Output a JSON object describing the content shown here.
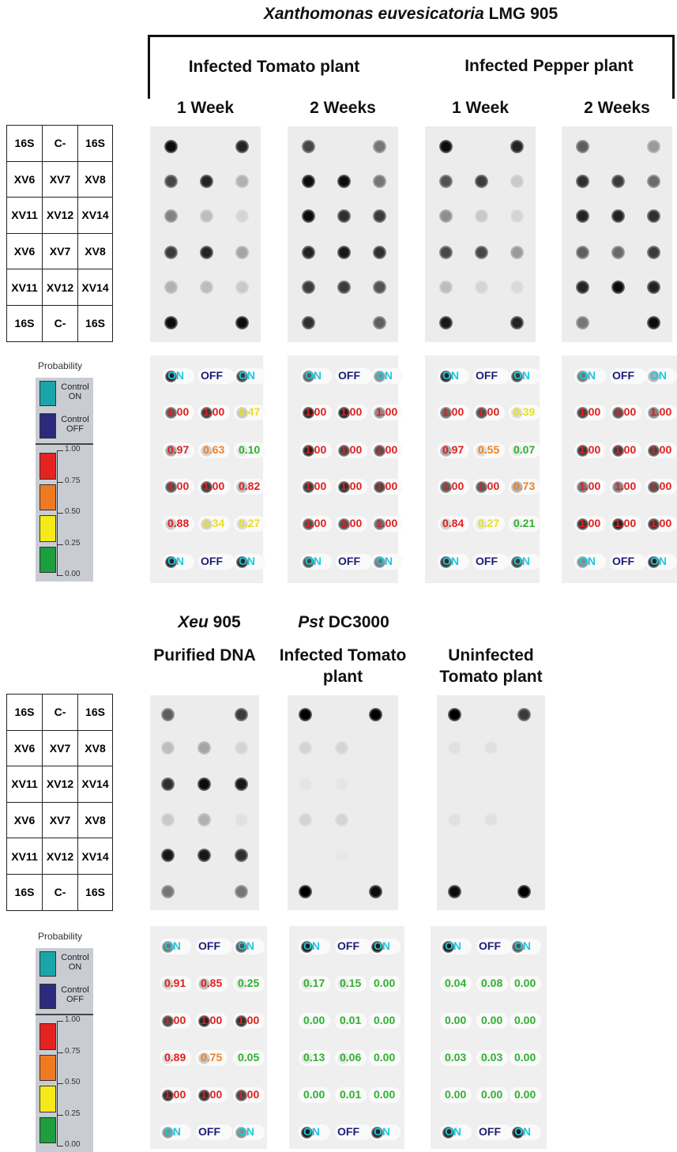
{
  "top": {
    "title_italic": "Xanthomonas euvesicatoria",
    "title_rest": "LMG 905",
    "groups": [
      "Infected Tomato plant",
      "Infected Pepper plant"
    ],
    "panels": [
      {
        "label": "1 Week",
        "probabilities": [
          [
            "ON",
            "OFF",
            "ON"
          ],
          [
            "1.00",
            "1.00",
            "0.47"
          ],
          [
            "0.97",
            "0.63",
            "0.10"
          ],
          [
            "1.00",
            "1.00",
            "0.82"
          ],
          [
            "0.88",
            "0.34",
            "0.27"
          ],
          [
            "ON",
            "OFF",
            "ON"
          ]
        ]
      },
      {
        "label": "2 Weeks",
        "probabilities": [
          [
            "ON",
            "OFF",
            "ON"
          ],
          [
            "1.00",
            "1.00",
            "1.00"
          ],
          [
            "1.00",
            "1.00",
            "1.00"
          ],
          [
            "1.00",
            "1.00",
            "1.00"
          ],
          [
            "1.00",
            "1.00",
            "1.00"
          ],
          [
            "ON",
            "OFF",
            "ON"
          ]
        ]
      },
      {
        "label": "1 Week",
        "probabilities": [
          [
            "ON",
            "OFF",
            "ON"
          ],
          [
            "1.00",
            "1.00",
            "0.39"
          ],
          [
            "0.97",
            "0.55",
            "0.07"
          ],
          [
            "1.00",
            "1.00",
            "0.73"
          ],
          [
            "0.84",
            "0.27",
            "0.21"
          ],
          [
            "ON",
            "OFF",
            "ON"
          ]
        ]
      },
      {
        "label": "2 Weeks",
        "probabilities": [
          [
            "ON",
            "OFF",
            "ON"
          ],
          [
            "1.00",
            "1.00",
            "1.00"
          ],
          [
            "1.00",
            "1.00",
            "1.00"
          ],
          [
            "1.00",
            "1.00",
            "1.00"
          ],
          [
            "1.00",
            "1.00",
            "1.00"
          ],
          [
            "ON",
            "OFF",
            "ON"
          ]
        ]
      }
    ]
  },
  "bottom": {
    "source_labels": [
      {
        "italic": "Xeu",
        "rest": "905"
      },
      {
        "italic": "Pst",
        "rest": "DC3000"
      }
    ],
    "panels": [
      {
        "label": "Purified DNA",
        "probabilities": [
          [
            "ON",
            "OFF",
            "ON"
          ],
          [
            "0.91",
            "0.85",
            "0.25"
          ],
          [
            "1.00",
            "1.00",
            "1.00"
          ],
          [
            "0.89",
            "0.75",
            "0.05"
          ],
          [
            "1.00",
            "1.00",
            "1.00"
          ],
          [
            "ON",
            "OFF",
            "ON"
          ]
        ]
      },
      {
        "label": "Infected Tomato plant",
        "probabilities": [
          [
            "ON",
            "OFF",
            "ON"
          ],
          [
            "0.17",
            "0.15",
            "0.00"
          ],
          [
            "0.00",
            "0.01",
            "0.00"
          ],
          [
            "0.13",
            "0.06",
            "0.00"
          ],
          [
            "0.00",
            "0.01",
            "0.00"
          ],
          [
            "ON",
            "OFF",
            "ON"
          ]
        ]
      },
      {
        "label": "Uninfected Tomato plant",
        "probabilities": [
          [
            "ON",
            "OFF",
            "ON"
          ],
          [
            "0.04",
            "0.08",
            "0.00"
          ],
          [
            "0.00",
            "0.00",
            "0.00"
          ],
          [
            "0.03",
            "0.03",
            "0.00"
          ],
          [
            "0.00",
            "0.00",
            "0.00"
          ],
          [
            "ON",
            "OFF",
            "ON"
          ]
        ]
      }
    ]
  },
  "spot_layout": [
    [
      "16S",
      "C-",
      "16S"
    ],
    [
      "XV6",
      "XV7",
      "XV8"
    ],
    [
      "XV11",
      "XV12",
      "XV14"
    ],
    [
      "XV6",
      "XV7",
      "XV8"
    ],
    [
      "XV11",
      "XV12",
      "XV14"
    ],
    [
      "16S",
      "C-",
      "16S"
    ]
  ],
  "legend": {
    "title": "Probability",
    "control_on": "Control ON",
    "control_off": "Control OFF",
    "control_on_color": "#1aa6a8",
    "control_off_color": "#2b2a7c",
    "on_text_color": "#22c8dc",
    "off_text_color": "#1c1c78",
    "scale_ticks": [
      "1.00",
      "0.75",
      "0.50",
      "0.25",
      "0.00"
    ],
    "scale_colors": [
      "#e42320",
      "#ef7a22",
      "#f5ea18",
      "#1e9e3e"
    ],
    "text_colors": [
      "#e02020",
      "#f08020",
      "#e8e020",
      "#30b030"
    ]
  }
}
